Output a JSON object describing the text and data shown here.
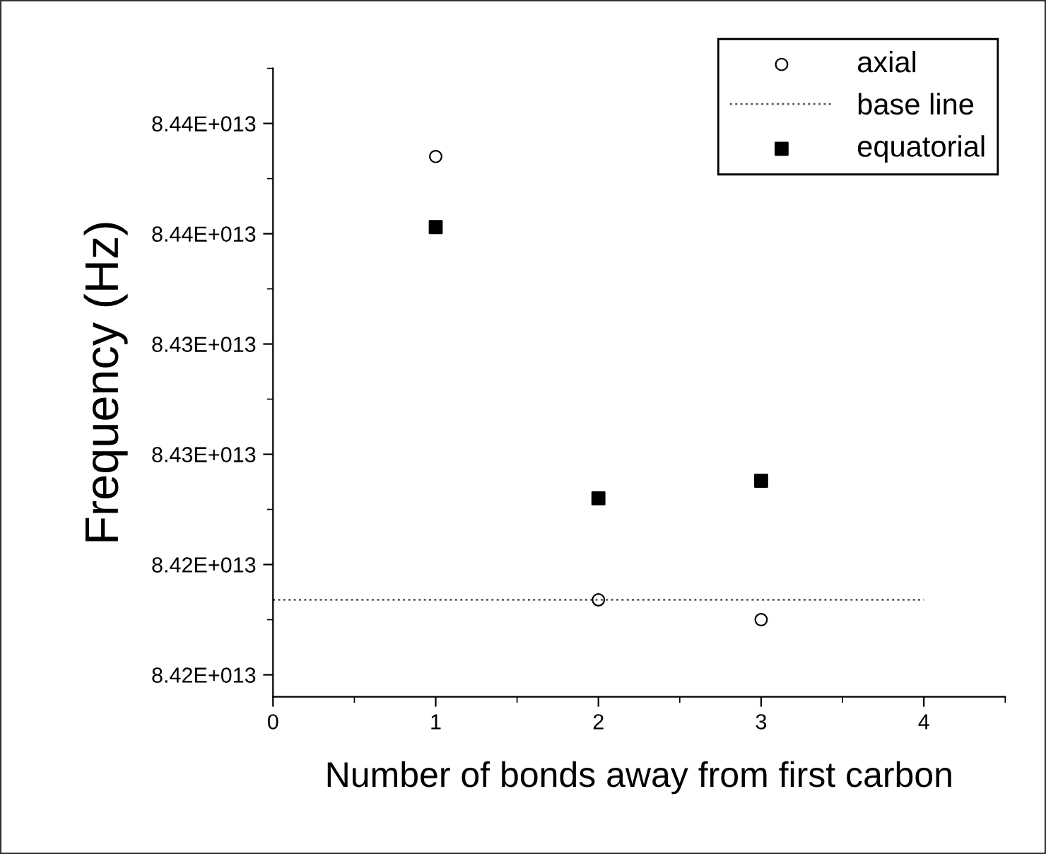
{
  "chart_data": {
    "type": "scatter",
    "xlabel": "Number of bonds away from first carbon",
    "ylabel": "Frequency (Hz)",
    "xlim": [
      0,
      4.5
    ],
    "xticks": [
      0,
      1,
      2,
      3,
      4
    ],
    "ylim": [
      84165000000000.0,
      84450000000000.0
    ],
    "yticks": [
      {
        "value": 84175000000000.0,
        "label": "8.42E+013"
      },
      {
        "value": 84225000000000.0,
        "label": "8.42E+013"
      },
      {
        "value": 84275000000000.0,
        "label": "8.43E+013"
      },
      {
        "value": 84325000000000.0,
        "label": "8.43E+013"
      },
      {
        "value": 84375000000000.0,
        "label": "8.44E+013"
      },
      {
        "value": 84425000000000.0,
        "label": "8.44E+013"
      }
    ],
    "grid": false,
    "legend": "top right",
    "series": [
      {
        "name": "axial",
        "marker": "circle",
        "color": "#000000",
        "x": [
          1,
          2,
          3
        ],
        "values": [
          84410000000000.0,
          84209000000000.0,
          84200000000000.0
        ]
      },
      {
        "name": "base line",
        "type": "line",
        "line_style": "dotted",
        "marker": "none",
        "color": "#555555",
        "x": [
          0,
          4
        ],
        "values": [
          84209000000000.0,
          84209000000000.0
        ]
      },
      {
        "name": "equatorial",
        "marker": "square",
        "color": "#000000",
        "x": [
          1,
          2,
          3
        ],
        "values": [
          84378000000000.0,
          84255000000000.0,
          84263000000000.0
        ]
      }
    ]
  }
}
